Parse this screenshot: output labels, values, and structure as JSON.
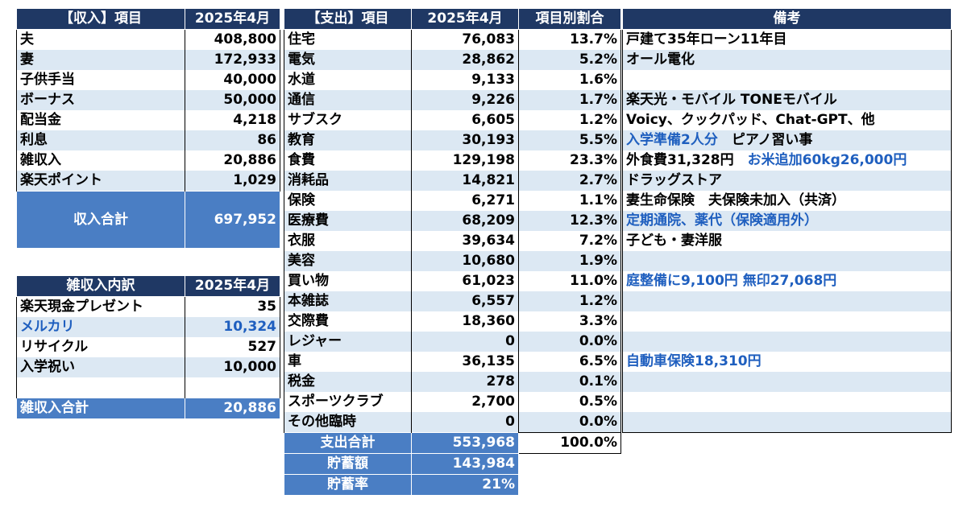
{
  "income": {
    "header": [
      "【収入】項目",
      "2025年4月"
    ],
    "rows": [
      [
        "夫",
        "408,800"
      ],
      [
        "妻",
        "172,933"
      ],
      [
        "子供手当",
        "40,000"
      ],
      [
        "ボーナス",
        "50,000"
      ],
      [
        "配当金",
        "4,218"
      ],
      [
        "利息",
        "86"
      ],
      [
        "雑収入",
        "20,886"
      ],
      [
        "楽天ポイント",
        "1,029"
      ]
    ],
    "total_label": "収入合計",
    "total_value": "697,952"
  },
  "misc": {
    "header": [
      "雑収入内訳",
      "2025年4月"
    ],
    "rows": [
      [
        "楽天現金プレゼント",
        "35"
      ],
      [
        "メルカリ",
        "10,324"
      ],
      [
        "リサイクル",
        "527"
      ],
      [
        "入学祝い",
        "10,000"
      ],
      [
        "",
        ""
      ]
    ],
    "total_label": "雑収入合計",
    "total_value": "20,886"
  },
  "expense": {
    "header": [
      "【支出】項目",
      "2025年4月",
      "項目別割合"
    ],
    "rows": [
      [
        "住宅",
        "76,083",
        "13.7%"
      ],
      [
        "電気",
        "28,862",
        "5.2%"
      ],
      [
        "水道",
        "9,133",
        "1.6%"
      ],
      [
        "通信",
        "9,226",
        "1.7%"
      ],
      [
        "サブスク",
        "6,605",
        "1.2%"
      ],
      [
        "教育",
        "30,193",
        "5.5%"
      ],
      [
        "食費",
        "129,198",
        "23.3%"
      ],
      [
        "消耗品",
        "14,821",
        "2.7%"
      ],
      [
        "保険",
        "6,271",
        "1.1%"
      ],
      [
        "医療費",
        "68,209",
        "12.3%"
      ],
      [
        "衣服",
        "39,634",
        "7.2%"
      ],
      [
        "美容",
        "10,680",
        "1.9%"
      ],
      [
        "買い物",
        "61,023",
        "11.0%"
      ],
      [
        "本雑誌",
        "6,557",
        "1.2%"
      ],
      [
        "交際費",
        "18,360",
        "3.3%"
      ],
      [
        "レジャー",
        "0",
        "0.0%"
      ],
      [
        "車",
        "36,135",
        "6.5%"
      ],
      [
        "税金",
        "278",
        "0.1%"
      ],
      [
        "スポーツクラブ",
        "2,700",
        "0.5%"
      ],
      [
        "その他臨時",
        "0",
        "0.0%"
      ]
    ],
    "total_label": "支出合計",
    "total_value": "553,968",
    "total_ratio": "100.0%",
    "savings_label": "貯蓄額",
    "savings_value": "143,984",
    "rate_label": "貯蓄率",
    "rate_value": "21%"
  },
  "notes": {
    "header": "備考",
    "rows": [
      {
        "black": "戸建て35年ローン11年目",
        "blue": ""
      },
      {
        "black": "オール電化",
        "blue": ""
      },
      {
        "black": "",
        "blue": ""
      },
      {
        "black": "楽天光・モバイル TONEモバイル",
        "blue": ""
      },
      {
        "black": "Voicy、クックパッド、Chat-GPT、他",
        "blue": ""
      },
      {
        "blue": "入学準備2人分",
        "black": "ピアノ習い事",
        "order": "blue-first"
      },
      {
        "black": "外食費31,328円",
        "blue": "お米追加60kg26,000円"
      },
      {
        "black": "ドラッグストア",
        "blue": ""
      },
      {
        "black": "妻生命保険　夫保険未加入（共済）",
        "blue": ""
      },
      {
        "black": "",
        "blue": "定期通院、薬代（保険適用外）"
      },
      {
        "black": "子ども・妻洋服",
        "blue": ""
      },
      {
        "black": "",
        "blue": ""
      },
      {
        "black": "",
        "blue": "庭整備に9,100円 無印27,068円"
      },
      {
        "black": "",
        "blue": ""
      },
      {
        "black": "",
        "blue": ""
      },
      {
        "black": "",
        "blue": ""
      },
      {
        "black": "",
        "blue": "自動車保険18,310円"
      },
      {
        "black": "",
        "blue": ""
      },
      {
        "black": "",
        "blue": ""
      },
      {
        "black": "",
        "blue": ""
      }
    ]
  }
}
